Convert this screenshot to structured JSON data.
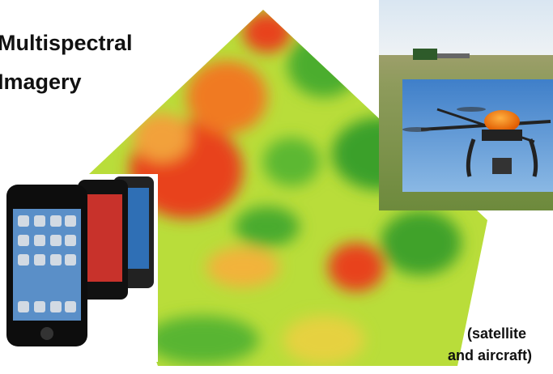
{
  "title": [
    "Multispectral",
    "Imagery"
  ],
  "caption": [
    "(satellite",
    "and aircraft)"
  ]
}
